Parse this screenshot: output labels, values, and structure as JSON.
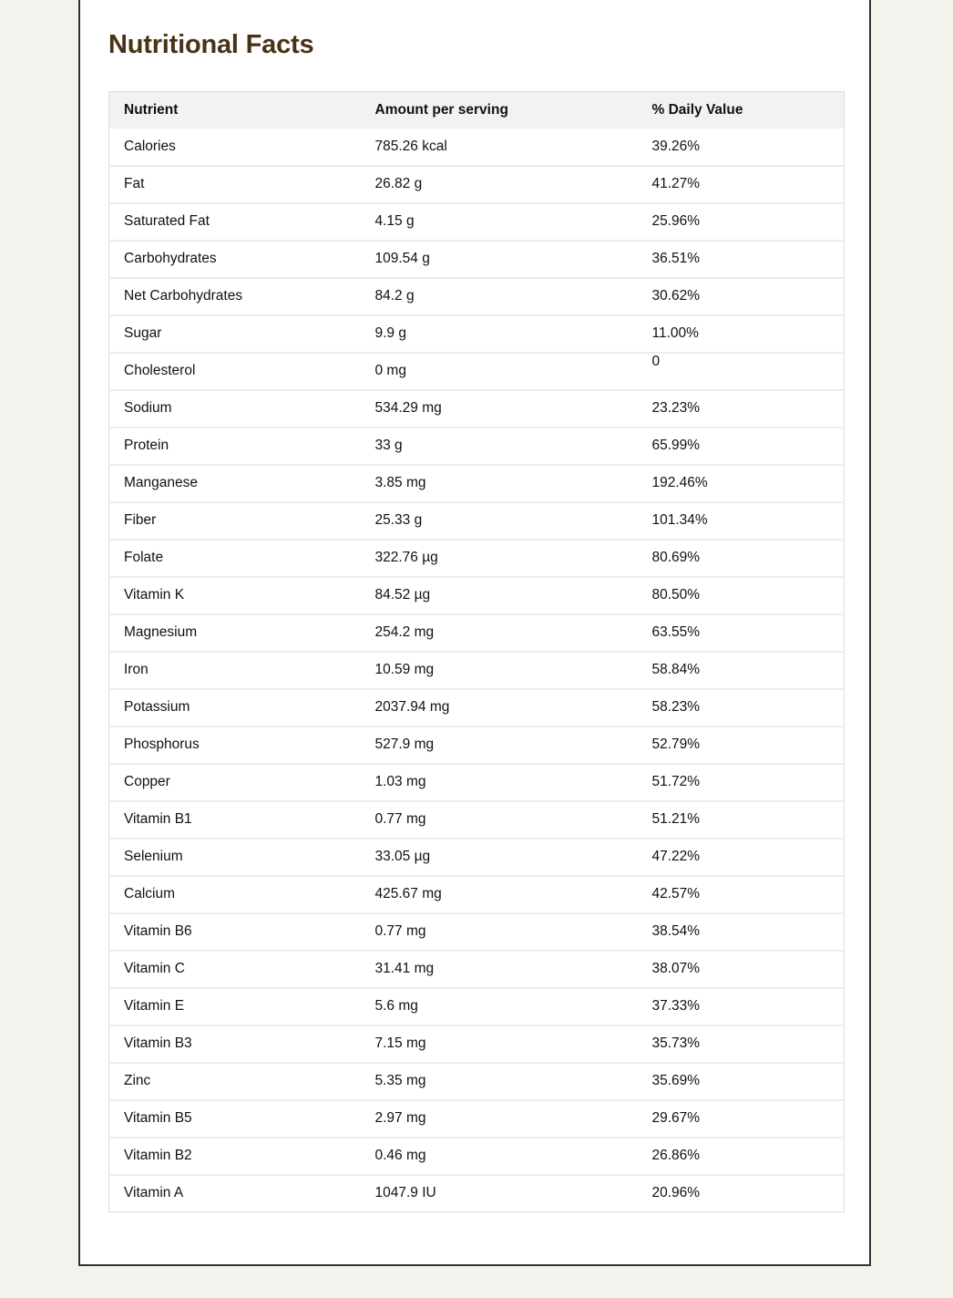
{
  "title": "Nutritional Facts",
  "table": {
    "headers": [
      "Nutrient",
      "Amount per serving",
      "% Daily Value"
    ],
    "rows": [
      {
        "nutrient": "Calories",
        "amount": "785.26 kcal",
        "dv": "39.26%"
      },
      {
        "nutrient": "Fat",
        "amount": "26.82 g",
        "dv": "41.27%"
      },
      {
        "nutrient": "Saturated Fat",
        "amount": "4.15 g",
        "dv": "25.96%"
      },
      {
        "nutrient": "Carbohydrates",
        "amount": "109.54 g",
        "dv": "36.51%"
      },
      {
        "nutrient": "Net Carbohydrates",
        "amount": "84.2 g",
        "dv": "30.62%"
      },
      {
        "nutrient": "Sugar",
        "amount": "9.9 g",
        "dv": "11.00%"
      },
      {
        "nutrient": "Cholesterol",
        "amount": "0 mg",
        "dv": "0",
        "misaligned": true
      },
      {
        "nutrient": "Sodium",
        "amount": "534.29 mg",
        "dv": "23.23%"
      },
      {
        "nutrient": "Protein",
        "amount": "33 g",
        "dv": "65.99%"
      },
      {
        "nutrient": "Manganese",
        "amount": "3.85 mg",
        "dv": "192.46%"
      },
      {
        "nutrient": "Fiber",
        "amount": "25.33 g",
        "dv": "101.34%"
      },
      {
        "nutrient": "Folate",
        "amount": "322.76 µg",
        "dv": "80.69%"
      },
      {
        "nutrient": "Vitamin K",
        "amount": "84.52 µg",
        "dv": "80.50%"
      },
      {
        "nutrient": "Magnesium",
        "amount": "254.2 mg",
        "dv": "63.55%"
      },
      {
        "nutrient": "Iron",
        "amount": "10.59 mg",
        "dv": "58.84%"
      },
      {
        "nutrient": "Potassium",
        "amount": "2037.94 mg",
        "dv": "58.23%"
      },
      {
        "nutrient": "Phosphorus",
        "amount": "527.9 mg",
        "dv": "52.79%"
      },
      {
        "nutrient": "Copper",
        "amount": "1.03 mg",
        "dv": "51.72%"
      },
      {
        "nutrient": "Vitamin B1",
        "amount": "0.77 mg",
        "dv": "51.21%"
      },
      {
        "nutrient": "Selenium",
        "amount": "33.05 µg",
        "dv": "47.22%"
      },
      {
        "nutrient": "Calcium",
        "amount": "425.67 mg",
        "dv": "42.57%"
      },
      {
        "nutrient": "Vitamin B6",
        "amount": "0.77 mg",
        "dv": "38.54%"
      },
      {
        "nutrient": "Vitamin C",
        "amount": "31.41 mg",
        "dv": "38.07%"
      },
      {
        "nutrient": "Vitamin E",
        "amount": "5.6 mg",
        "dv": "37.33%"
      },
      {
        "nutrient": "Vitamin B3",
        "amount": "7.15 mg",
        "dv": "35.73%"
      },
      {
        "nutrient": "Zinc",
        "amount": "5.35 mg",
        "dv": "35.69%"
      },
      {
        "nutrient": "Vitamin B5",
        "amount": "2.97 mg",
        "dv": "29.67%"
      },
      {
        "nutrient": "Vitamin B2",
        "amount": "0.46 mg",
        "dv": "26.86%"
      },
      {
        "nutrient": "Vitamin A",
        "amount": "1047.9 IU",
        "dv": "20.96%"
      }
    ]
  },
  "colors": {
    "title": "#4a3216",
    "background": "#f3f3ee",
    "header_bg": "#f2f2f2"
  }
}
